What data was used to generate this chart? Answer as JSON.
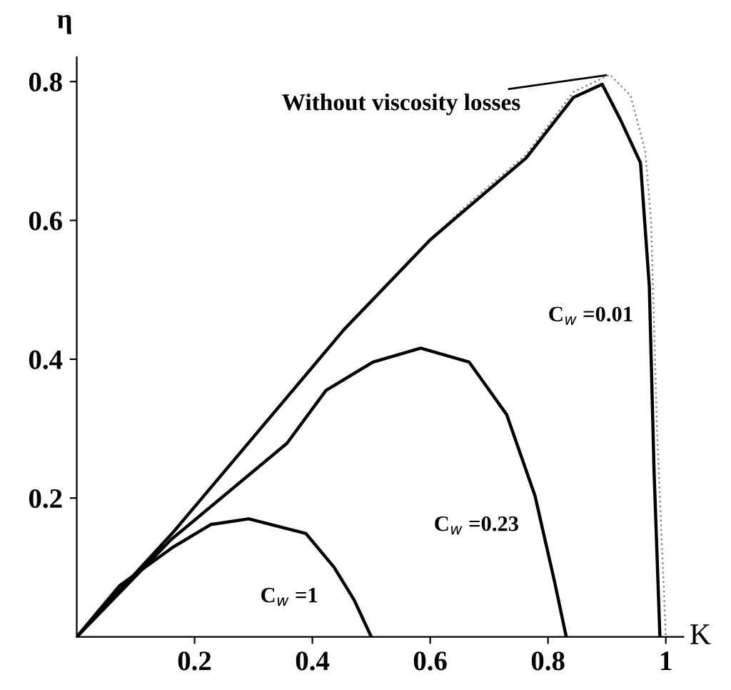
{
  "chart_data": {
    "type": "line",
    "xlabel": "K",
    "ylabel": "η",
    "xlim": [
      0,
      1.03
    ],
    "ylim": [
      0,
      0.835
    ],
    "xticks": [
      0.2,
      0.4,
      0.6,
      0.8,
      1
    ],
    "yticks": [
      0.2,
      0.4,
      0.6,
      0.8
    ],
    "grid": false,
    "legend": false,
    "marker": "none",
    "series": [
      {
        "name": "Without viscosity losses",
        "color": "#888888",
        "line_style": "dotted",
        "x": [
          0,
          0.163,
          0.454,
          0.6,
          0.666,
          0.763,
          0.843,
          0.905,
          0.94,
          0.965,
          0.975,
          0.985,
          1.0
        ],
        "values": [
          0,
          0.15,
          0.443,
          0.572,
          0.625,
          0.695,
          0.785,
          0.81,
          0.78,
          0.7,
          0.6,
          0.3,
          0
        ]
      },
      {
        "name": "C$_{w}$ =0.01",
        "color": "#000000",
        "line_style": "solid",
        "x": [
          0,
          0.163,
          0.454,
          0.6,
          0.666,
          0.763,
          0.843,
          0.892,
          0.923,
          0.957,
          0.972,
          0.98,
          0.99
        ],
        "values": [
          0,
          0.15,
          0.443,
          0.572,
          0.62,
          0.69,
          0.777,
          0.796,
          0.745,
          0.683,
          0.505,
          0.24,
          0
        ]
      },
      {
        "name": "C$_{w}$ =0.23",
        "color": "#000000",
        "line_style": "solid",
        "x": [
          0,
          0.16,
          0.357,
          0.423,
          0.503,
          0.584,
          0.666,
          0.73,
          0.778,
          0.811,
          0.831
        ],
        "values": [
          0,
          0.14,
          0.279,
          0.355,
          0.396,
          0.416,
          0.396,
          0.32,
          0.203,
          0.08,
          0
        ]
      },
      {
        "name": "C$_{w}$ =1",
        "color": "#000000",
        "line_style": "solid",
        "x": [
          0,
          0.073,
          0.163,
          0.228,
          0.292,
          0.389,
          0.437,
          0.471,
          0.5
        ],
        "values": [
          0,
          0.074,
          0.129,
          0.162,
          0.17,
          0.149,
          0.1,
          0.053,
          0
        ]
      }
    ]
  }
}
